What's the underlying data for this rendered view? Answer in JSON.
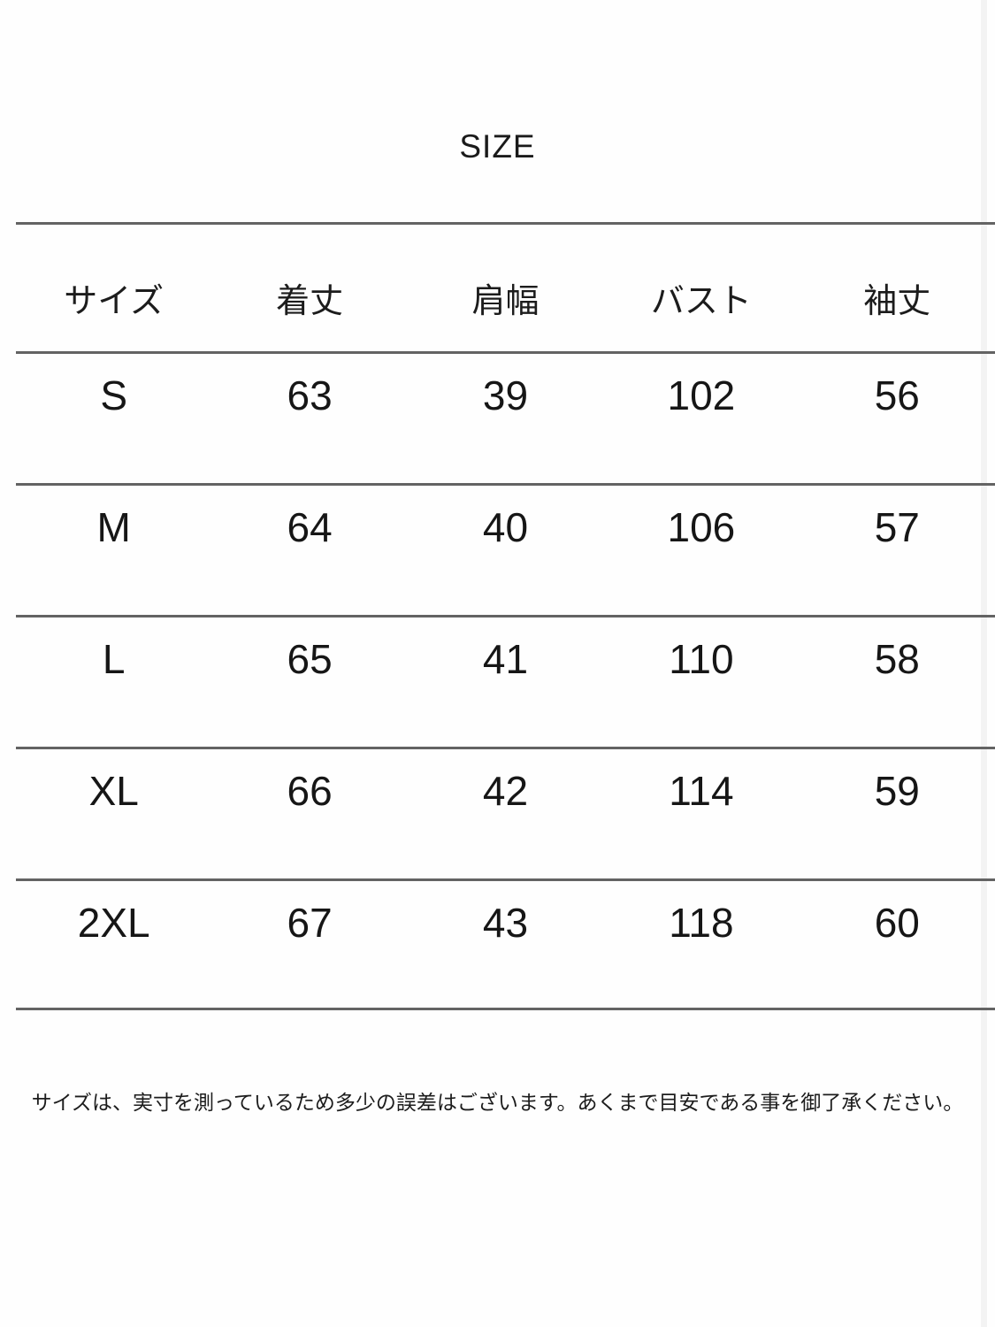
{
  "title": "SIZE",
  "note": "サイズは、実寸を測っているため多少の誤差はございます。あくまで目安である事を御了承ください。",
  "colors": {
    "background": "#fefefe",
    "text": "#1c1c1c",
    "rule_line": "#636363",
    "edge_artifact": "#f3f3f3"
  },
  "chart_data": {
    "type": "table",
    "title": "SIZE",
    "columns": [
      "サイズ",
      "着丈",
      "肩幅",
      "バスト",
      "袖丈"
    ],
    "rows": [
      [
        "S",
        "63",
        "39",
        "102",
        "56"
      ],
      [
        "M",
        "64",
        "40",
        "106",
        "57"
      ],
      [
        "L",
        "65",
        "41",
        "110",
        "58"
      ],
      [
        "XL",
        "66",
        "42",
        "114",
        "59"
      ],
      [
        "2XL",
        "67",
        "43",
        "118",
        "60"
      ]
    ],
    "note": "サイズは、実寸を測っているため多少の誤差はございます。あくまで目安である事を御了承ください。",
    "units": "cm",
    "grid": "horizontal-rules-only",
    "legend": "none"
  }
}
